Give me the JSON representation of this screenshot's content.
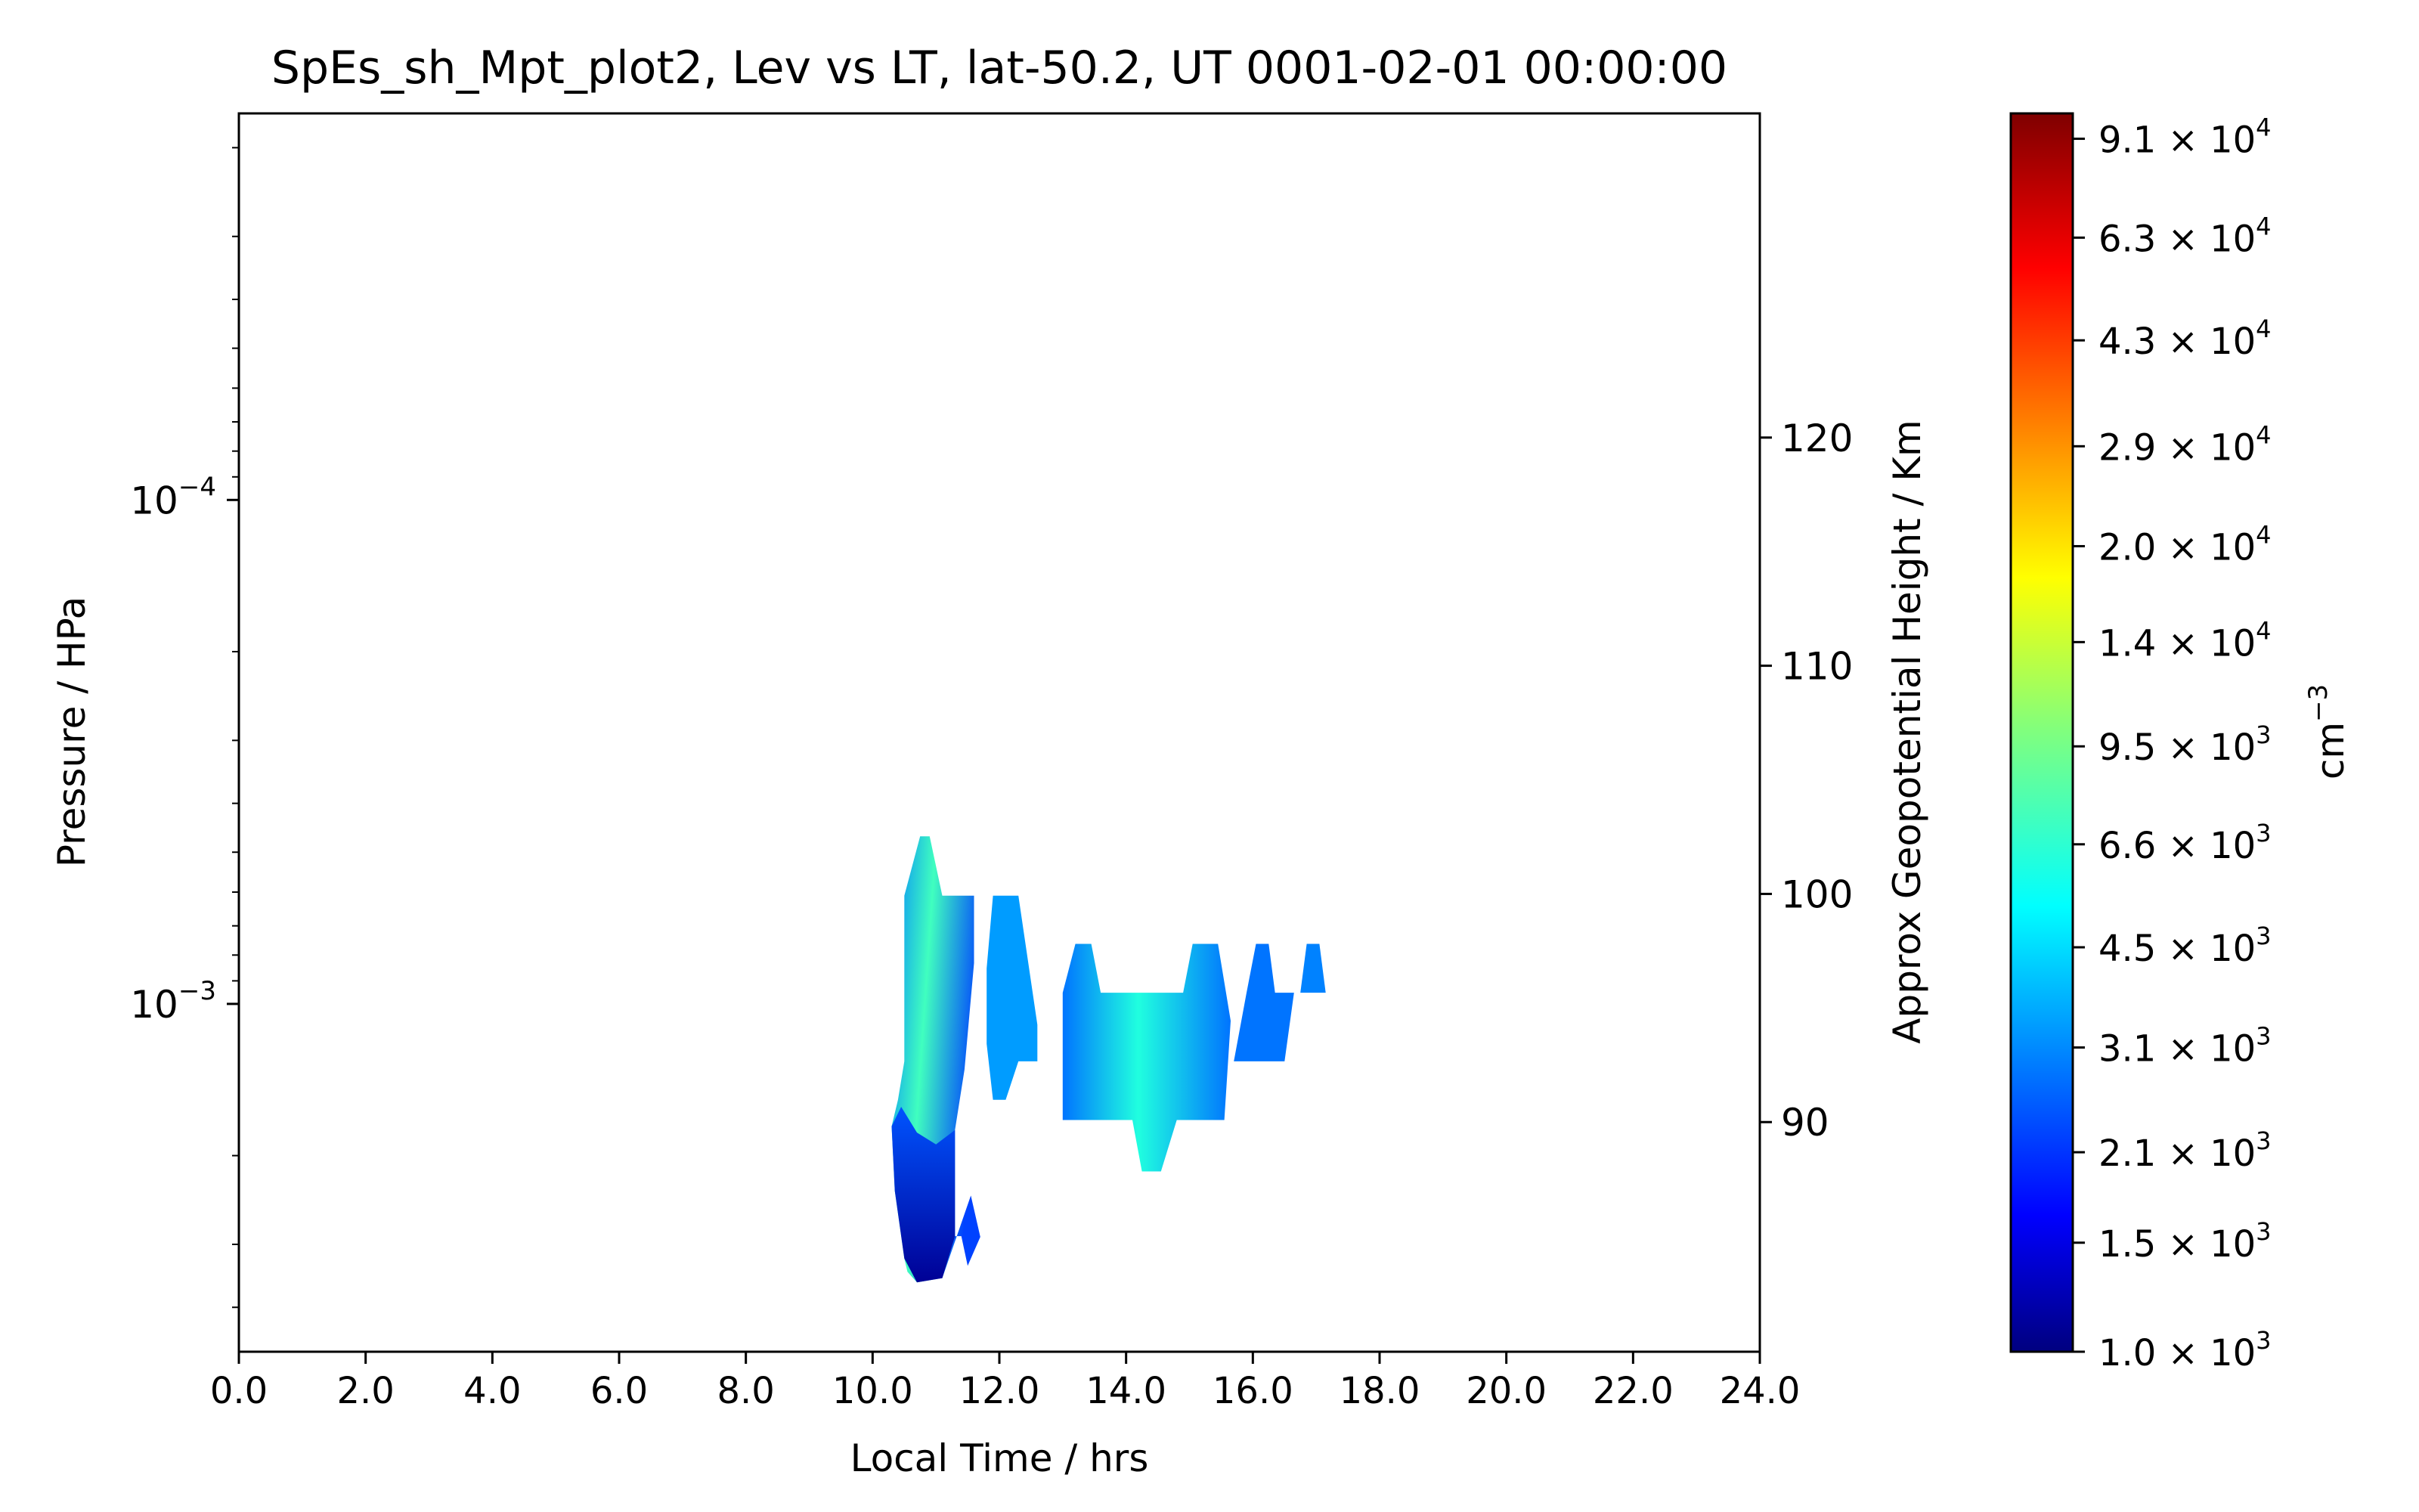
{
  "chart_data": {
    "type": "heatmap",
    "title": "SpEs_sh_Mpt_plot2, Lev vs LT, lat-50.2, UT 0001-02-01 00:00:00",
    "xlabel": "Local Time / hrs",
    "ylabel": "Pressure / HPa",
    "ylabel_right": "Approx Geopotential Height / Km",
    "colorbar_label": "cm",
    "colorbar_label_exp": "−3",
    "xlim": [
      0,
      24
    ],
    "x_ticks": [
      0,
      2,
      4,
      6,
      8,
      10,
      12,
      14,
      16,
      18,
      20,
      22,
      24
    ],
    "x_tick_labels": [
      "0.0",
      "2.0",
      "4.0",
      "6.0",
      "8.0",
      "10.0",
      "12.0",
      "14.0",
      "16.0",
      "18.0",
      "20.0",
      "22.0",
      "24.0"
    ],
    "yscale": "log",
    "y_inverted": true,
    "ylim": [
      0.0049,
      1.71e-05
    ],
    "y_ticks": [
      0.0001,
      0.001
    ],
    "y_tick_labels": [
      {
        "mantissa": "10",
        "exp": "−4"
      },
      {
        "mantissa": "10",
        "exp": "−3"
      }
    ],
    "right_axis_ticks": [
      90,
      100,
      110,
      120
    ],
    "colorbar": {
      "scale": "log",
      "min": 1000,
      "max": 100000,
      "colormap": "jet",
      "ticks": [
        {
          "value": 1000,
          "label": "1.0 × 10",
          "exp": "3"
        },
        {
          "value": 1500,
          "label": "1.5 × 10",
          "exp": "3"
        },
        {
          "value": 2100,
          "label": "2.1 × 10",
          "exp": "3"
        },
        {
          "value": 3100,
          "label": "3.1 × 10",
          "exp": "3"
        },
        {
          "value": 4500,
          "label": "4.5 × 10",
          "exp": "3"
        },
        {
          "value": 6600,
          "label": "6.6 × 10",
          "exp": "3"
        },
        {
          "value": 9500,
          "label": "9.5 × 10",
          "exp": "3"
        },
        {
          "value": 14000,
          "label": "1.4 × 10",
          "exp": "4"
        },
        {
          "value": 20000,
          "label": "2.0 × 10",
          "exp": "4"
        },
        {
          "value": 29000,
          "label": "2.9 × 10",
          "exp": "4"
        },
        {
          "value": 43000,
          "label": "4.3 × 10",
          "exp": "4"
        },
        {
          "value": 63000,
          "label": "6.3 × 10",
          "exp": "4"
        },
        {
          "value": 91000,
          "label": "9.1 × 10",
          "exp": "4"
        }
      ]
    },
    "regions": [
      {
        "name": "column-10-11",
        "value": 6000,
        "polygon": [
          [
            10.5,
            0.00061
          ],
          [
            10.75,
            0.000465
          ],
          [
            10.9,
            0.000465
          ],
          [
            11.1,
            0.00061
          ],
          [
            11.6,
            0.00061
          ],
          [
            11.6,
            0.00083
          ],
          [
            11.45,
            0.00135
          ],
          [
            11.3,
            0.00178
          ],
          [
            11.3,
            0.00289
          ],
          [
            11.4,
            0.00289
          ],
          [
            11.5,
            0.00331
          ],
          [
            11.7,
            0.0029
          ],
          [
            11.55,
            0.0024
          ],
          [
            11.1,
            0.0035
          ],
          [
            10.7,
            0.00357
          ],
          [
            10.55,
            0.0034
          ],
          [
            10.5,
            0.0032
          ],
          [
            10.35,
            0.00235
          ],
          [
            10.3,
            0.00175
          ],
          [
            10.4,
            0.00155
          ],
          [
            10.5,
            0.0013
          ]
        ]
      },
      {
        "name": "column-low-blue",
        "value": 1800,
        "polygon": [
          [
            10.3,
            0.00175
          ],
          [
            10.35,
            0.00235
          ],
          [
            10.5,
            0.0032
          ],
          [
            10.7,
            0.00357
          ],
          [
            11.1,
            0.0035
          ],
          [
            11.3,
            0.00289
          ],
          [
            11.3,
            0.00178
          ],
          [
            11.0,
            0.0019
          ],
          [
            10.7,
            0.0018
          ],
          [
            10.45,
            0.0016
          ]
        ]
      },
      {
        "name": "column-12",
        "value": 3600,
        "polygon": [
          [
            11.9,
            0.00061
          ],
          [
            12.3,
            0.00061
          ],
          [
            12.6,
            0.0011
          ],
          [
            12.6,
            0.0013
          ],
          [
            12.3,
            0.0013
          ],
          [
            12.1,
            0.00155
          ],
          [
            11.9,
            0.00155
          ],
          [
            11.8,
            0.0012
          ],
          [
            11.8,
            0.00085
          ]
        ]
      },
      {
        "name": "block-13-16",
        "value": 4200,
        "polygon": [
          [
            13.0,
            0.00095
          ],
          [
            13.2,
            0.00076
          ],
          [
            13.45,
            0.00076
          ],
          [
            13.6,
            0.00095
          ],
          [
            14.9,
            0.00095
          ],
          [
            15.05,
            0.00076
          ],
          [
            15.45,
            0.00076
          ],
          [
            15.65,
            0.00108
          ],
          [
            15.55,
            0.0017
          ],
          [
            14.8,
            0.0017
          ],
          [
            14.55,
            0.00215
          ],
          [
            14.25,
            0.00215
          ],
          [
            14.1,
            0.0017
          ],
          [
            13.0,
            0.0017
          ]
        ]
      },
      {
        "name": "blob-16",
        "value": 3000,
        "polygon": [
          [
            15.9,
            0.00095
          ],
          [
            16.05,
            0.00076
          ],
          [
            16.25,
            0.00076
          ],
          [
            16.35,
            0.00095
          ],
          [
            16.65,
            0.00095
          ],
          [
            16.5,
            0.0013
          ],
          [
            15.7,
            0.0013
          ]
        ]
      },
      {
        "name": "blob-17",
        "value": 3200,
        "polygon": [
          [
            16.75,
            0.00095
          ],
          [
            16.85,
            0.00076
          ],
          [
            17.05,
            0.00076
          ],
          [
            17.15,
            0.00095
          ]
        ]
      }
    ]
  }
}
